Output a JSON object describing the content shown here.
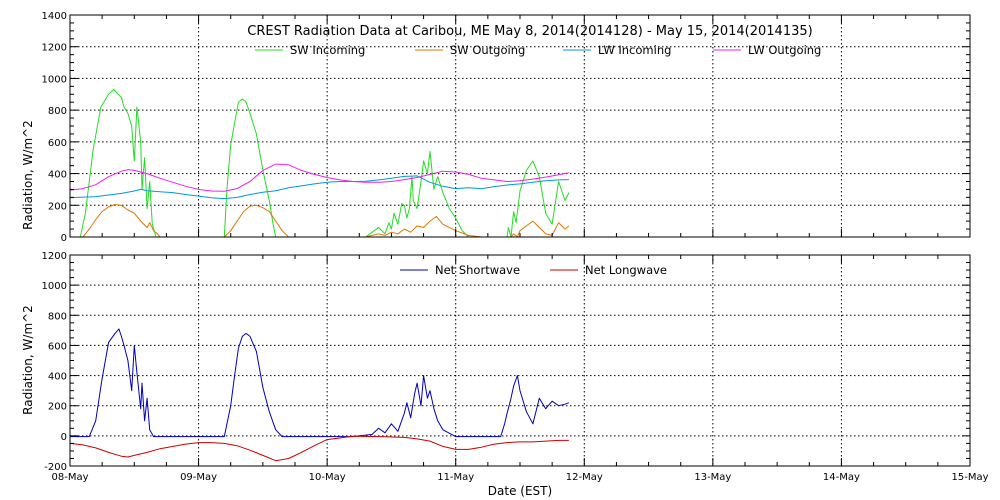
{
  "chart_data": [
    {
      "type": "line",
      "title": "CREST Radiation Data at Caribou, ME   May  8, 2014(2014128) - May 15, 2014(2014135)",
      "ylabel": "Radiation, W/m^2",
      "xlabel": "",
      "ylim": [
        0,
        1400
      ],
      "yticks": [
        0,
        200,
        400,
        600,
        800,
        1000,
        1200,
        1400
      ],
      "xlim": [
        0,
        7
      ],
      "grid": true,
      "legend_position": "top",
      "series": [
        {
          "name": "SW Incoming",
          "color": "#22dd22",
          "x": [
            0.04,
            0.08,
            0.12,
            0.18,
            0.24,
            0.3,
            0.34,
            0.4,
            0.42,
            0.45,
            0.48,
            0.5,
            0.52,
            0.55,
            0.56,
            0.58,
            0.6,
            0.62,
            0.64,
            0.67,
            0.7,
            0.74,
            0.78,
            0.8,
            0.85,
            0.9,
            0.95,
            1.0,
            1.05,
            1.1,
            1.15,
            1.2,
            1.22,
            1.25,
            1.28,
            1.31,
            1.34,
            1.37,
            1.4,
            1.45,
            1.5,
            1.55,
            1.58,
            1.6,
            1.62,
            1.63,
            1.65,
            1.67,
            1.7,
            1.72,
            1.75,
            1.8,
            1.9,
            2.0,
            2.1,
            2.2,
            2.3,
            2.35,
            2.4,
            2.45,
            2.48,
            2.5,
            2.52,
            2.55,
            2.58,
            2.6,
            2.62,
            2.64,
            2.65,
            2.66,
            2.67,
            2.7,
            2.73,
            2.75,
            2.78,
            2.8,
            2.83,
            2.86,
            2.9,
            2.95,
            3.0,
            3.05,
            3.1,
            3.15,
            3.2,
            3.25,
            3.3,
            3.32,
            3.35,
            3.38,
            3.4,
            3.41,
            3.43,
            3.45,
            3.47,
            3.5,
            3.55,
            3.6,
            3.65,
            3.7,
            3.75,
            3.8,
            3.85,
            3.88
          ],
          "y": [
            0,
            0,
            150,
            550,
            820,
            900,
            930,
            880,
            820,
            780,
            700,
            480,
            820,
            600,
            300,
            500,
            180,
            350,
            80,
            0,
            0,
            0,
            0,
            0,
            0,
            0,
            0,
            0,
            0,
            0,
            0,
            0,
            300,
            580,
            720,
            850,
            870,
            850,
            780,
            650,
            420,
            230,
            80,
            0,
            0,
            0,
            0,
            0,
            0,
            0,
            0,
            0,
            0,
            0,
            0,
            0,
            0,
            30,
            60,
            20,
            90,
            50,
            150,
            80,
            210,
            200,
            120,
            180,
            280,
            380,
            230,
            180,
            350,
            480,
            400,
            540,
            300,
            380,
            280,
            180,
            120,
            40,
            0,
            0,
            0,
            0,
            0,
            0,
            0,
            0,
            0,
            60,
            0,
            160,
            90,
            290,
            420,
            480,
            380,
            150,
            80,
            350,
            230,
            280
          ]
        },
        {
          "name": "SW Outgoing",
          "color": "#dd7700",
          "x": [
            0.04,
            0.1,
            0.15,
            0.2,
            0.25,
            0.3,
            0.35,
            0.4,
            0.45,
            0.5,
            0.55,
            0.6,
            0.62,
            0.65,
            0.68,
            0.7,
            0.75,
            0.8,
            0.9,
            1.0,
            1.1,
            1.15,
            1.2,
            1.25,
            1.3,
            1.35,
            1.4,
            1.45,
            1.5,
            1.55,
            1.6,
            1.65,
            1.7,
            1.8,
            2.0,
            2.2,
            2.3,
            2.35,
            2.4,
            2.45,
            2.5,
            2.55,
            2.6,
            2.65,
            2.7,
            2.75,
            2.8,
            2.85,
            2.9,
            3.0,
            3.1,
            3.2,
            3.3,
            3.35,
            3.38,
            3.4,
            3.43,
            3.45,
            3.48,
            3.5,
            3.55,
            3.6,
            3.65,
            3.7,
            3.75,
            3.8,
            3.85,
            3.88
          ],
          "y": [
            0,
            0,
            50,
            110,
            160,
            190,
            205,
            200,
            170,
            150,
            100,
            60,
            90,
            40,
            20,
            0,
            0,
            0,
            0,
            0,
            0,
            0,
            0,
            40,
            100,
            160,
            195,
            200,
            185,
            160,
            100,
            40,
            0,
            0,
            0,
            0,
            0,
            10,
            20,
            10,
            30,
            20,
            50,
            30,
            70,
            60,
            100,
            130,
            80,
            40,
            10,
            0,
            0,
            0,
            0,
            0,
            0,
            20,
            0,
            40,
            70,
            100,
            60,
            20,
            10,
            90,
            50,
            70
          ]
        },
        {
          "name": "LW Incoming",
          "color": "#0099dd",
          "x": [
            0.0,
            0.2,
            0.4,
            0.5,
            0.55,
            0.6,
            0.7,
            0.8,
            0.9,
            1.0,
            1.1,
            1.2,
            1.3,
            1.4,
            1.5,
            1.6,
            1.7,
            1.8,
            1.9,
            2.0,
            2.1,
            2.2,
            2.3,
            2.4,
            2.5,
            2.6,
            2.7,
            2.8,
            2.9,
            3.0,
            3.1,
            3.2,
            3.3,
            3.4,
            3.5,
            3.6,
            3.7,
            3.8,
            3.88
          ],
          "y": [
            248,
            255,
            275,
            290,
            300,
            292,
            285,
            280,
            268,
            258,
            248,
            242,
            250,
            268,
            282,
            292,
            310,
            322,
            335,
            345,
            350,
            350,
            352,
            360,
            370,
            382,
            385,
            345,
            320,
            305,
            310,
            305,
            318,
            328,
            335,
            345,
            355,
            360,
            362
          ]
        },
        {
          "name": "LW Outgoing",
          "color": "#ee22ee",
          "x": [
            0.0,
            0.1,
            0.2,
            0.3,
            0.4,
            0.45,
            0.5,
            0.6,
            0.7,
            0.8,
            0.9,
            1.0,
            1.1,
            1.2,
            1.3,
            1.4,
            1.5,
            1.6,
            1.7,
            1.8,
            1.9,
            2.0,
            2.1,
            2.2,
            2.3,
            2.4,
            2.5,
            2.6,
            2.7,
            2.8,
            2.9,
            3.0,
            3.1,
            3.2,
            3.3,
            3.4,
            3.5,
            3.6,
            3.7,
            3.8,
            3.88
          ],
          "y": [
            295,
            305,
            330,
            380,
            415,
            425,
            420,
            400,
            370,
            345,
            320,
            300,
            290,
            288,
            305,
            350,
            420,
            460,
            455,
            420,
            395,
            375,
            360,
            350,
            345,
            345,
            350,
            362,
            375,
            395,
            415,
            410,
            395,
            370,
            360,
            350,
            355,
            365,
            378,
            392,
            405
          ]
        }
      ],
      "x_tick_labels": [
        "08-May",
        "09-May",
        "10-May",
        "11-May",
        "12-May",
        "13-May",
        "14-May",
        "15-May"
      ]
    },
    {
      "type": "line",
      "ylabel": "Radiation, W/m^2",
      "xlabel": "Date (EST)",
      "ylim": [
        -200,
        1200
      ],
      "yticks": [
        -200,
        0,
        200,
        400,
        600,
        800,
        1000,
        1200
      ],
      "xlim": [
        0,
        7
      ],
      "grid": true,
      "legend_position": "top",
      "series": [
        {
          "name": "Net Shortwave",
          "color": "#0000bb",
          "x": [
            0.0,
            0.1,
            0.15,
            0.2,
            0.25,
            0.3,
            0.35,
            0.38,
            0.4,
            0.42,
            0.45,
            0.48,
            0.5,
            0.52,
            0.55,
            0.56,
            0.58,
            0.6,
            0.62,
            0.65,
            0.7,
            0.8,
            1.0,
            1.2,
            1.25,
            1.28,
            1.31,
            1.34,
            1.37,
            1.4,
            1.45,
            1.5,
            1.55,
            1.6,
            1.65,
            1.7,
            1.8,
            2.0,
            2.2,
            2.35,
            2.4,
            2.45,
            2.5,
            2.55,
            2.6,
            2.62,
            2.65,
            2.68,
            2.7,
            2.73,
            2.75,
            2.78,
            2.8,
            2.83,
            2.86,
            2.9,
            3.0,
            3.2,
            3.3,
            3.35,
            3.38,
            3.4,
            3.43,
            3.45,
            3.48,
            3.5,
            3.55,
            3.6,
            3.65,
            3.7,
            3.75,
            3.8,
            3.85,
            3.88
          ],
          "y": [
            -5,
            -5,
            -5,
            100,
            380,
            620,
            680,
            710,
            660,
            600,
            500,
            300,
            600,
            420,
            180,
            350,
            100,
            250,
            40,
            -5,
            -5,
            -5,
            -5,
            -5,
            200,
            400,
            580,
            660,
            680,
            660,
            560,
            320,
            160,
            40,
            -5,
            -5,
            -5,
            -5,
            -5,
            10,
            50,
            20,
            80,
            30,
            150,
            220,
            120,
            280,
            350,
            200,
            400,
            250,
            300,
            180,
            100,
            40,
            -5,
            -5,
            -5,
            -5,
            80,
            150,
            250,
            330,
            400,
            300,
            160,
            80,
            250,
            180,
            230,
            200,
            210,
            220
          ]
        },
        {
          "name": "Net Longwave",
          "color": "#cc0000",
          "x": [
            0.0,
            0.1,
            0.2,
            0.3,
            0.4,
            0.45,
            0.5,
            0.6,
            0.7,
            0.8,
            0.9,
            1.0,
            1.1,
            1.2,
            1.3,
            1.4,
            1.5,
            1.6,
            1.7,
            1.8,
            1.9,
            2.0,
            2.2,
            2.4,
            2.6,
            2.7,
            2.8,
            2.9,
            3.0,
            3.1,
            3.2,
            3.3,
            3.4,
            3.5,
            3.6,
            3.7,
            3.8,
            3.88
          ],
          "y": [
            -50,
            -60,
            -80,
            -110,
            -135,
            -140,
            -130,
            -110,
            -85,
            -70,
            -55,
            -45,
            -45,
            -50,
            -65,
            -95,
            -130,
            -165,
            -150,
            -110,
            -65,
            -25,
            -2,
            -5,
            -10,
            -20,
            -35,
            -70,
            -90,
            -90,
            -75,
            -55,
            -45,
            -40,
            -40,
            -35,
            -30,
            -30
          ]
        }
      ],
      "x_tick_labels": [
        "08-May",
        "09-May",
        "10-May",
        "11-May",
        "12-May",
        "13-May",
        "14-May",
        "15-May"
      ]
    }
  ]
}
